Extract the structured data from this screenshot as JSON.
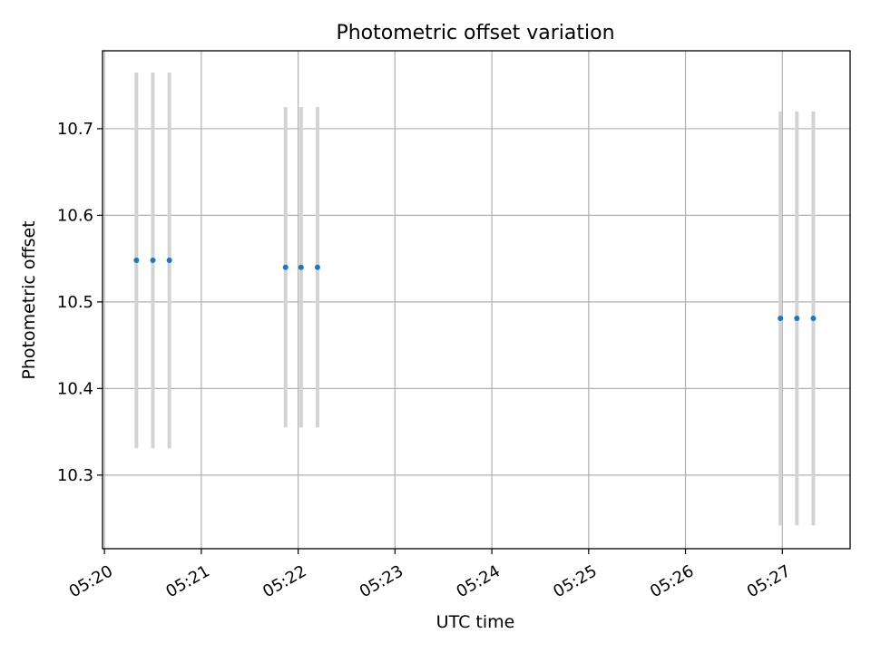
{
  "chart_data": {
    "type": "scatter",
    "title": "Photometric offset variation",
    "xlabel": "UTC time",
    "ylabel": "Photometric offset",
    "x_ticks": [
      "05:20",
      "05:21",
      "05:22",
      "05:23",
      "05:24",
      "05:25",
      "05:26",
      "05:27"
    ],
    "x_tick_minutes": [
      0,
      1,
      2,
      3,
      4,
      5,
      6,
      7
    ],
    "xlim_minutes": [
      -0.02,
      7.7
    ],
    "y_ticks": [
      10.3,
      10.4,
      10.5,
      10.6,
      10.7
    ],
    "y_tick_labels": [
      "10.3",
      "10.4",
      "10.5",
      "10.6",
      "10.7"
    ],
    "ylim": [
      10.215,
      10.79
    ],
    "grid": true,
    "colors": {
      "points": "#1f77b4",
      "error_bars": "#d3d3d3",
      "grid": "#b0b0b0",
      "axes": "#000000"
    },
    "series": [
      {
        "points": [
          {
            "minute": 0.33,
            "y": 10.548,
            "err": 0.217
          },
          {
            "minute": 0.5,
            "y": 10.548,
            "err": 0.217
          },
          {
            "minute": 0.67,
            "y": 10.548,
            "err": 0.217
          },
          {
            "minute": 1.87,
            "y": 10.54,
            "err": 0.185
          },
          {
            "minute": 2.03,
            "y": 10.54,
            "err": 0.185
          },
          {
            "minute": 2.2,
            "y": 10.54,
            "err": 0.185
          },
          {
            "minute": 6.98,
            "y": 10.481,
            "err": 0.239
          },
          {
            "minute": 7.15,
            "y": 10.481,
            "err": 0.239
          },
          {
            "minute": 7.32,
            "y": 10.481,
            "err": 0.239
          }
        ]
      }
    ]
  }
}
